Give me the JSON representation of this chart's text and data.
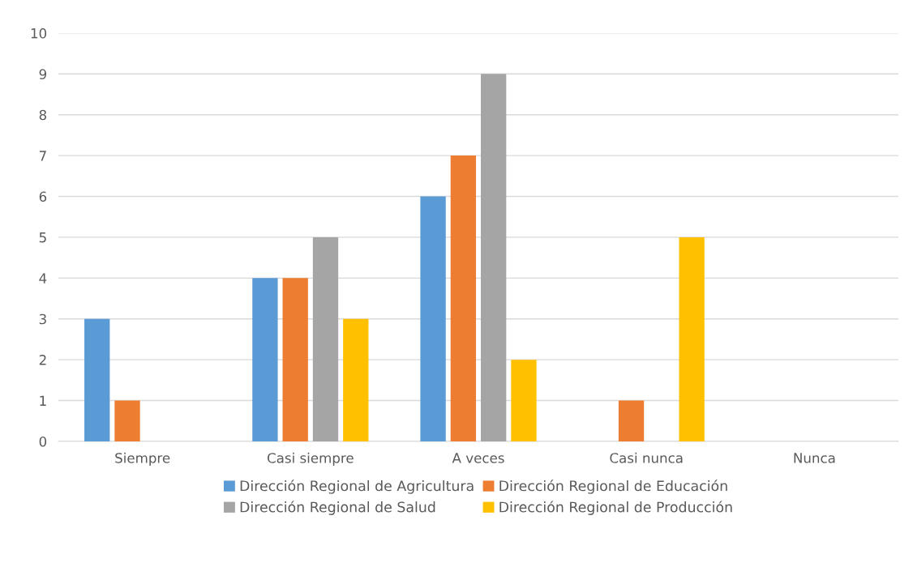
{
  "chart_data": {
    "type": "bar",
    "categories": [
      "Siempre",
      "Casi siempre",
      "A veces",
      "Casi nunca",
      "Nunca"
    ],
    "series": [
      {
        "name": "Dirección Regional de Agricultura",
        "color": "#5b9bd5",
        "values": [
          3,
          4,
          6,
          0,
          0
        ]
      },
      {
        "name": "Dirección Regional de Educación",
        "color": "#ed7d31",
        "values": [
          1,
          4,
          7,
          1,
          0
        ]
      },
      {
        "name": "Dirección Regional de Salud",
        "color": "#a5a5a5",
        "values": [
          0,
          5,
          9,
          0,
          0
        ]
      },
      {
        "name": "Dirección Regional de Producción",
        "color": "#ffc000",
        "values": [
          0,
          3,
          2,
          5,
          0
        ]
      }
    ],
    "ylim": [
      0,
      10
    ],
    "yticks": [
      0,
      1,
      2,
      3,
      4,
      5,
      6,
      7,
      8,
      9,
      10
    ],
    "grid": "y",
    "legend": "bottom"
  }
}
